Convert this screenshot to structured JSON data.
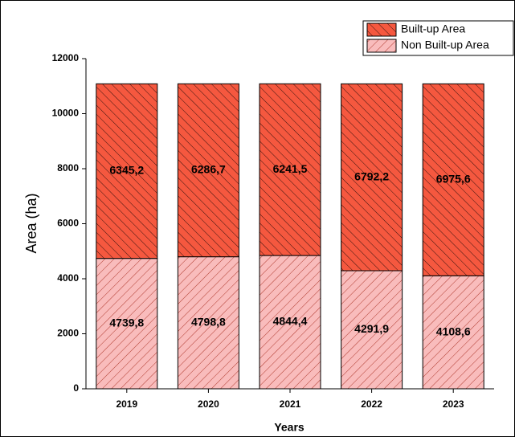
{
  "chart_data": {
    "type": "bar",
    "stacked": true,
    "x_label": "Years",
    "y_label": "Area (ha)",
    "categories": [
      "2019",
      "2020",
      "2021",
      "2022",
      "2023"
    ],
    "series": [
      {
        "name": "Non Built-up Area",
        "color": "#f9bcbc",
        "values": [
          4739.8,
          4798.8,
          4844.4,
          4291.9,
          4108.6
        ],
        "value_labels": [
          "4739,8",
          "4798,8",
          "4844,4",
          "4291,9",
          "4108,6"
        ]
      },
      {
        "name": "Built-up Area",
        "color": "#f5583f",
        "values": [
          6345.2,
          6286.7,
          6241.5,
          6792.2,
          6975.6
        ],
        "value_labels": [
          "6345,2",
          "6286,7",
          "6241,5",
          "6792,2",
          "6975,6"
        ]
      }
    ],
    "ylim": [
      0,
      12000
    ],
    "yticks": [
      0,
      2000,
      4000,
      6000,
      8000,
      10000,
      12000
    ],
    "legend": "top-right"
  }
}
